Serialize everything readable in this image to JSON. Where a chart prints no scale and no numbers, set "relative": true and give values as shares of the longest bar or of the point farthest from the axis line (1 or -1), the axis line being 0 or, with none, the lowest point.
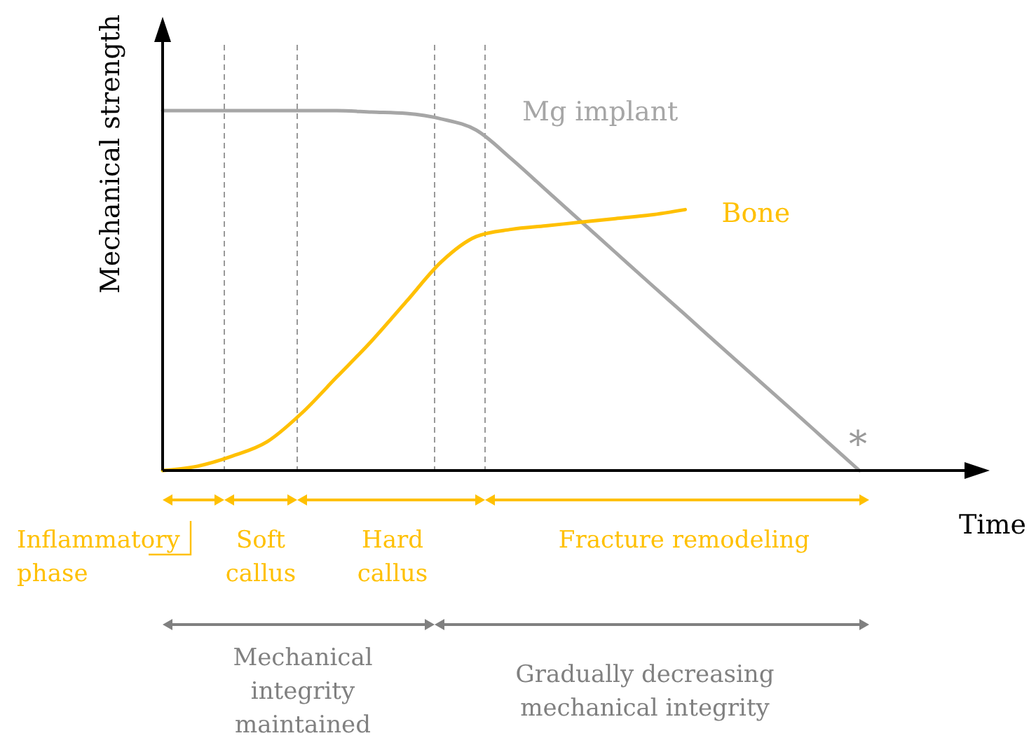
{
  "chart_data": {
    "type": "line",
    "relative": true,
    "xlabel": "Time",
    "ylabel": "Mechanical strength",
    "categories": [
      null,
      null,
      null,
      null,
      null,
      null,
      null,
      null,
      null,
      null,
      null,
      null,
      null,
      null,
      null,
      null,
      null,
      null,
      null,
      null,
      null,
      null,
      null,
      null
    ],
    "series": [
      {
        "name": "Mg implant",
        "color": "#a6a6a6",
        "values": [
          1,
          1,
          1,
          1,
          1,
          1,
          0.996,
          0.992,
          0.977,
          0.946,
          0.867,
          0.78,
          0.693,
          0.606,
          0.519,
          0.433,
          0.346,
          0.26,
          0.174,
          0.087,
          0,
          null,
          null,
          null
        ]
      },
      {
        "name": "Bone",
        "color": "#ffc000",
        "values": [
          0,
          0.012,
          0.04,
          0.08,
          0.16,
          0.26,
          0.36,
          0.47,
          0.58,
          0.65,
          0.67,
          0.68,
          0.69,
          0.7,
          0.71,
          0.725,
          null,
          null,
          null,
          null,
          null,
          null,
          null,
          null
        ]
      }
    ],
    "annotations": [
      "Inflammatory phase",
      "Soft callus",
      "Hard callus",
      "Fracture remodeling",
      "Mechanical integrity maintained",
      "Gradually decreasing mechanical integrity",
      "*"
    ]
  }
}
